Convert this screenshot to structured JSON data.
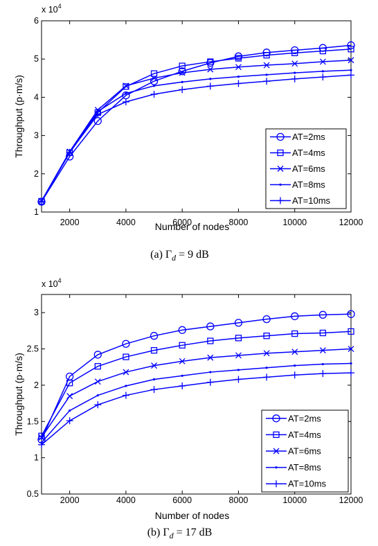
{
  "colors": {
    "series": "#0000ff",
    "axis": "#000000"
  },
  "chart_data": [
    {
      "type": "line",
      "caption": "(a) Γ_d = 9 dB",
      "caption_parts": {
        "prefix": "(a) ",
        "symbol": "Γ",
        "subscript": "d",
        "suffix": " = 9 dB"
      },
      "xlabel": "Number of nodes",
      "ylabel": "Throughput (p·m/s)",
      "y_multiplier": {
        "base": "x 10",
        "exponent": "4"
      },
      "xlim": [
        1000,
        12000
      ],
      "ylim": [
        1,
        6
      ],
      "xticks": [
        2000,
        4000,
        6000,
        8000,
        10000,
        12000
      ],
      "yticks": [
        1,
        2,
        3,
        4,
        5,
        6
      ],
      "legend_position": "bottom-right",
      "x": [
        1000,
        2000,
        3000,
        4000,
        5000,
        6000,
        7000,
        8000,
        9000,
        10000,
        11000,
        12000
      ],
      "series": [
        {
          "name": "AT=2ms",
          "marker": "circle",
          "values": [
            1.27,
            2.45,
            3.38,
            4.05,
            4.42,
            4.68,
            4.9,
            5.07,
            5.17,
            5.23,
            5.29,
            5.36
          ]
        },
        {
          "name": "AT=4ms",
          "marker": "square",
          "values": [
            1.28,
            2.55,
            3.6,
            4.28,
            4.62,
            4.82,
            4.93,
            5.02,
            5.1,
            5.16,
            5.21,
            5.26
          ]
        },
        {
          "name": "AT=6ms",
          "marker": "x",
          "values": [
            1.29,
            2.58,
            3.67,
            4.3,
            4.5,
            4.64,
            4.73,
            4.79,
            4.84,
            4.88,
            4.93,
            4.97
          ]
        },
        {
          "name": "AT=8ms",
          "marker": "point",
          "values": [
            1.28,
            2.57,
            3.63,
            4.1,
            4.3,
            4.4,
            4.48,
            4.54,
            4.59,
            4.64,
            4.68,
            4.71
          ]
        },
        {
          "name": "AT=10ms",
          "marker": "plus",
          "values": [
            1.28,
            2.56,
            3.55,
            3.88,
            4.08,
            4.2,
            4.29,
            4.36,
            4.42,
            4.48,
            4.53,
            4.58
          ]
        }
      ]
    },
    {
      "type": "line",
      "caption": "(b) Γ_d = 17 dB",
      "caption_parts": {
        "prefix": "(b) ",
        "symbol": "Γ",
        "subscript": "d",
        "suffix": " = 17 dB"
      },
      "xlabel": "Number of nodes",
      "ylabel": "Throughput (p·m/s)",
      "y_multiplier": {
        "base": "x 10",
        "exponent": "4"
      },
      "xlim": [
        1000,
        12000
      ],
      "ylim": [
        0.5,
        3.25
      ],
      "xticks": [
        2000,
        4000,
        6000,
        8000,
        10000,
        12000
      ],
      "yticks": [
        0.5,
        1,
        1.5,
        2,
        2.5,
        3
      ],
      "legend_position": "bottom-right",
      "x": [
        1000,
        2000,
        3000,
        4000,
        5000,
        6000,
        7000,
        8000,
        9000,
        10000,
        11000,
        12000
      ],
      "series": [
        {
          "name": "AT=2ms",
          "marker": "circle",
          "values": [
            1.25,
            2.12,
            2.42,
            2.57,
            2.68,
            2.76,
            2.81,
            2.86,
            2.91,
            2.95,
            2.97,
            2.98
          ]
        },
        {
          "name": "AT=4ms",
          "marker": "square",
          "values": [
            1.3,
            2.03,
            2.26,
            2.39,
            2.48,
            2.55,
            2.61,
            2.65,
            2.68,
            2.71,
            2.72,
            2.74
          ]
        },
        {
          "name": "AT=6ms",
          "marker": "x",
          "values": [
            1.28,
            1.85,
            2.05,
            2.18,
            2.27,
            2.33,
            2.38,
            2.41,
            2.44,
            2.46,
            2.48,
            2.5
          ]
        },
        {
          "name": "AT=8ms",
          "marker": "point",
          "values": [
            1.21,
            1.65,
            1.86,
            1.99,
            2.08,
            2.13,
            2.18,
            2.21,
            2.24,
            2.27,
            2.29,
            2.3
          ]
        },
        {
          "name": "AT=10ms",
          "marker": "plus",
          "values": [
            1.18,
            1.51,
            1.73,
            1.86,
            1.94,
            1.99,
            2.04,
            2.08,
            2.11,
            2.14,
            2.16,
            2.17
          ]
        }
      ]
    }
  ]
}
